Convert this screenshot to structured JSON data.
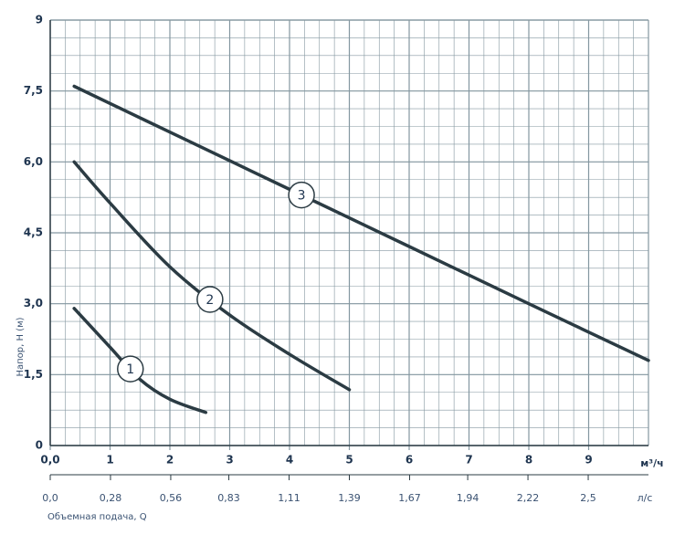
{
  "chart_data": {
    "type": "line",
    "y_label": "Напор, H (м)",
    "x_unit": "м³/ч",
    "x2_unit": "л/с",
    "x2_label": "Объемная подача, Q",
    "xlim": [
      0,
      10
    ],
    "ylim": [
      0,
      9
    ],
    "x2lim": [
      0,
      2.78
    ],
    "xticks": [
      {
        "value": 0,
        "label": "0,0"
      },
      1,
      2,
      3,
      4,
      5,
      6,
      7,
      8,
      9
    ],
    "yticks": [
      0,
      {
        "value": 1.5,
        "label": "1,5"
      },
      {
        "value": 3.0,
        "label": "3,0"
      },
      {
        "value": 4.5,
        "label": "4,5"
      },
      {
        "value": 6.0,
        "label": "6,0"
      },
      {
        "value": 7.5,
        "label": "7,5"
      },
      9
    ],
    "x2ticks": [
      {
        "value": 0,
        "label": "0,0"
      },
      {
        "value": 0.28,
        "label": "0,28"
      },
      {
        "value": 0.56,
        "label": "0,56"
      },
      {
        "value": 0.83,
        "label": "0,83"
      },
      {
        "value": 1.11,
        "label": "1,11"
      },
      {
        "value": 1.39,
        "label": "1,39"
      },
      {
        "value": 1.67,
        "label": "1,67"
      },
      {
        "value": 1.94,
        "label": "1,94"
      },
      {
        "value": 2.22,
        "label": "2,22"
      },
      {
        "value": 2.5,
        "label": "2,5"
      }
    ],
    "grid": true,
    "grid_color": "#8497a0",
    "series": [
      {
        "name": "1",
        "color": "#2b3b43",
        "label_x": 1.34,
        "label_y": 1.62,
        "x": [
          0.4,
          1,
          1.5,
          2,
          2.6
        ],
        "values": [
          2.9,
          2.08,
          1.4,
          0.98,
          0.7
        ]
      },
      {
        "name": "2",
        "color": "#2b3b43",
        "label_x": 2.67,
        "label_y": 3.09,
        "x": [
          0.4,
          1,
          2,
          3,
          4,
          5
        ],
        "values": [
          6.0,
          5.13,
          3.78,
          2.76,
          1.93,
          1.18
        ]
      },
      {
        "name": "3",
        "color": "#2b3b43",
        "label_x": 4.2,
        "label_y": 5.3,
        "x": [
          0.4,
          2,
          4,
          6,
          8,
          10
        ],
        "values": [
          7.6,
          6.63,
          5.42,
          4.21,
          3.0,
          1.8
        ]
      }
    ]
  }
}
